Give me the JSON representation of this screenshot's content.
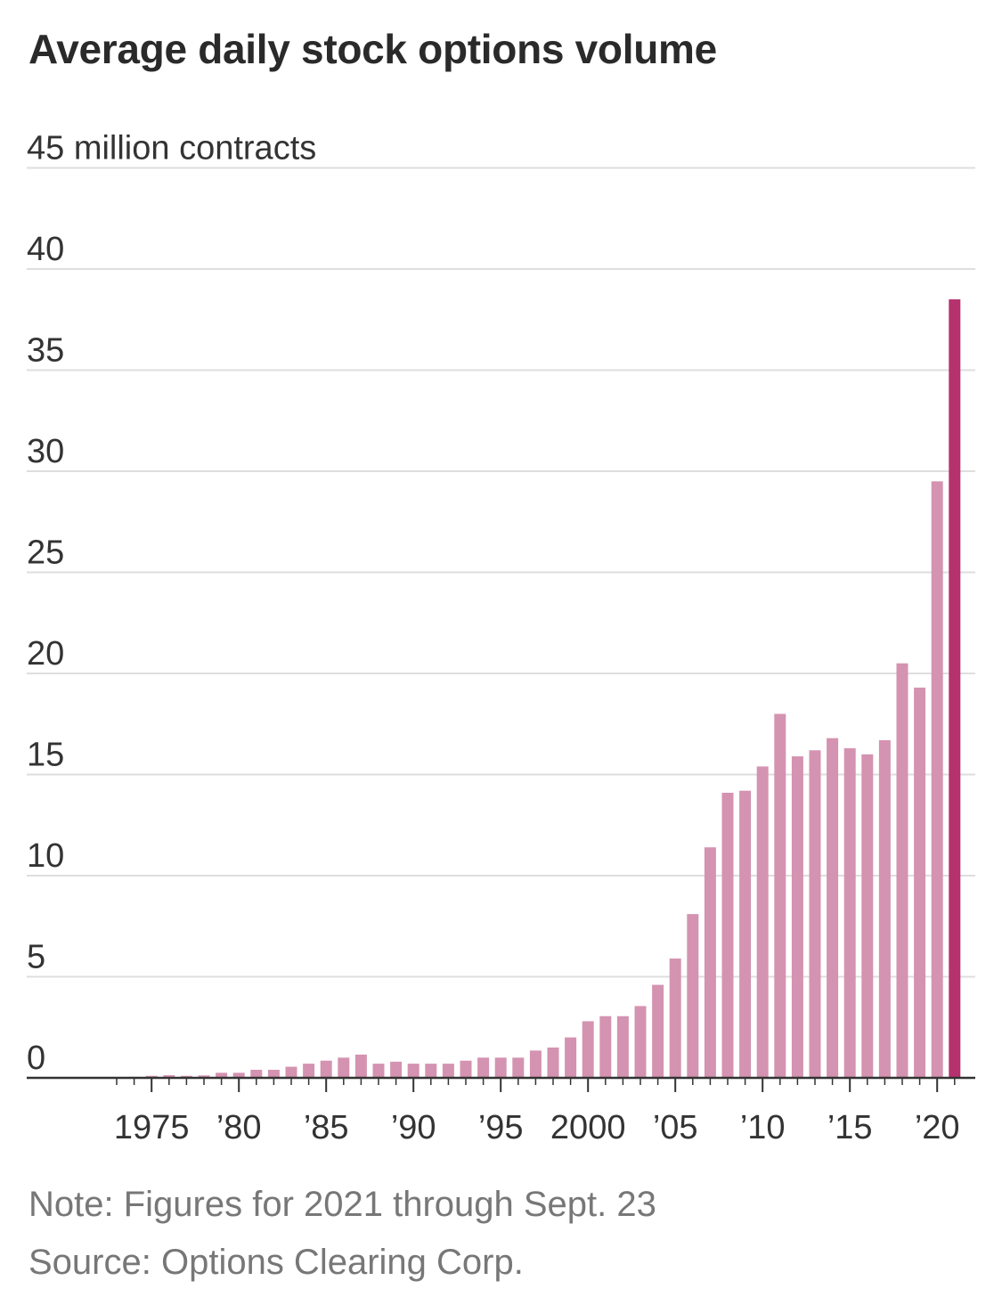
{
  "title": "Average daily stock options volume",
  "note": "Note: Figures for 2021 through Sept. 23",
  "source": "Source: Options Clearing Corp.",
  "chart_data": {
    "type": "bar",
    "title": "Average daily stock options volume",
    "ylabel": "45 million contracts",
    "xlabel": "",
    "unit_label": "million contracts",
    "ylim": [
      0,
      45
    ],
    "y_ticks": [
      0,
      5,
      10,
      15,
      20,
      25,
      30,
      35,
      40,
      45
    ],
    "y_tick_labels": [
      "0",
      "5",
      "10",
      "15",
      "20",
      "25",
      "30",
      "35",
      "40",
      "45 million contracts"
    ],
    "grid": true,
    "x_tick_years": [
      1975,
      1980,
      1985,
      1990,
      1995,
      2000,
      2005,
      2010,
      2015,
      2020
    ],
    "x_tick_labels": [
      "1975",
      "’80",
      "’85",
      "’90",
      "’95",
      "2000",
      "’05",
      "’10",
      "’15",
      "’20"
    ],
    "categories": [
      1973,
      1974,
      1975,
      1976,
      1977,
      1978,
      1979,
      1980,
      1981,
      1982,
      1983,
      1984,
      1985,
      1986,
      1987,
      1988,
      1989,
      1990,
      1991,
      1992,
      1993,
      1994,
      1995,
      1996,
      1997,
      1998,
      1999,
      2000,
      2001,
      2002,
      2003,
      2004,
      2005,
      2006,
      2007,
      2008,
      2009,
      2010,
      2011,
      2012,
      2013,
      2014,
      2015,
      2016,
      2017,
      2018,
      2019,
      2020,
      2021
    ],
    "values": [
      0.02,
      0.05,
      0.1,
      0.13,
      0.1,
      0.12,
      0.25,
      0.25,
      0.4,
      0.4,
      0.55,
      0.7,
      0.85,
      1.0,
      1.15,
      0.7,
      0.8,
      0.7,
      0.7,
      0.7,
      0.85,
      1.0,
      1.0,
      1.0,
      1.35,
      1.5,
      2.0,
      2.8,
      3.05,
      3.05,
      3.55,
      4.6,
      5.9,
      8.1,
      11.4,
      14.1,
      14.2,
      15.4,
      18.0,
      15.9,
      16.2,
      16.8,
      16.3,
      16.0,
      16.7,
      20.5,
      19.3,
      29.5,
      38.5
    ],
    "highlight_category": 2021,
    "colors": {
      "bar": "#d493b1",
      "highlight": "#b5326e",
      "grid": "#dedede",
      "axis": "#333333",
      "text": "#333333"
    }
  }
}
